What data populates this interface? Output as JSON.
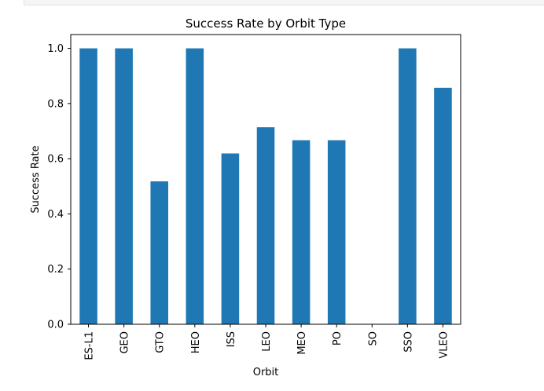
{
  "chart_data": {
    "type": "bar",
    "title": "Success Rate by Orbit Type",
    "xlabel": "Orbit",
    "ylabel": "Success Rate",
    "categories": [
      "ES-L1",
      "GEO",
      "GTO",
      "HEO",
      "ISS",
      "LEO",
      "MEO",
      "PO",
      "SO",
      "SSO",
      "VLEO"
    ],
    "values": [
      1.0,
      1.0,
      0.518,
      1.0,
      0.619,
      0.714,
      0.667,
      0.667,
      0.0,
      1.0,
      0.857
    ],
    "ylim": [
      0,
      1.05
    ],
    "yticks": [
      "0.0",
      "0.2",
      "0.4",
      "0.6",
      "0.8",
      "1.0"
    ],
    "grid": false,
    "legend": "none",
    "bar_color": "#1f77b4"
  }
}
